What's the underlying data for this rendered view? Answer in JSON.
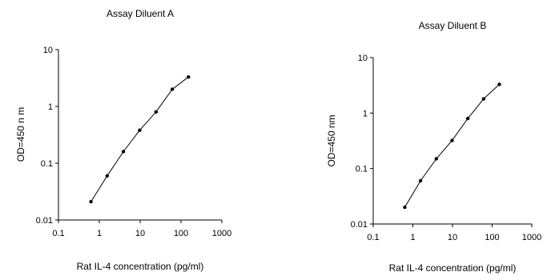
{
  "chart_data": [
    {
      "type": "line",
      "title": "Assay Diluent A",
      "xlabel": "Rat IL-4 concentration (pg/ml)",
      "ylabel": "OD=450 n m",
      "xscale": "log",
      "yscale": "log",
      "xlim": [
        0.1,
        1000
      ],
      "ylim": [
        0.01,
        10
      ],
      "xticks": [
        "0.1",
        "1",
        "10",
        "100",
        "1000"
      ],
      "yticks": [
        "0.01",
        "0.1",
        "1",
        "10"
      ],
      "grid": false,
      "series": [
        {
          "x": [
            0.625,
            1.56,
            3.9,
            9.75,
            24.4,
            61,
            152
          ],
          "y": [
            0.021,
            0.06,
            0.16,
            0.38,
            0.8,
            2.0,
            3.3
          ]
        }
      ]
    },
    {
      "type": "line",
      "title": "Assay Diluent B",
      "xlabel": "Rat IL-4 concentration (pg/ml)",
      "ylabel": "OD=450 nm",
      "xscale": "log",
      "yscale": "log",
      "xlim": [
        0.1,
        1000
      ],
      "ylim": [
        0.01,
        10
      ],
      "xticks": [
        "0.1",
        "1",
        "10",
        "100",
        "1000"
      ],
      "yticks": [
        "0.01",
        "0.1",
        "1",
        "10"
      ],
      "grid": false,
      "series": [
        {
          "x": [
            0.625,
            1.56,
            3.9,
            9.75,
            24.4,
            61,
            152
          ],
          "y": [
            0.02,
            0.06,
            0.15,
            0.32,
            0.8,
            1.8,
            3.3
          ]
        }
      ]
    }
  ]
}
